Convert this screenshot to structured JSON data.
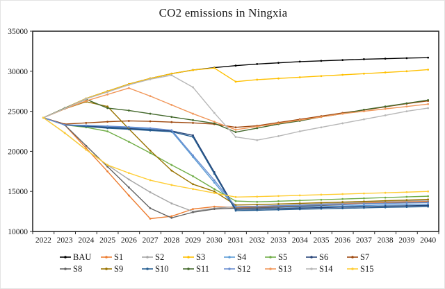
{
  "title": "CO2 emissions in Ningxia",
  "chart_data": {
    "type": "line",
    "title": "CO2 emissions in Ningxia",
    "xlabel": "",
    "ylabel": "",
    "x": [
      2022,
      2023,
      2024,
      2025,
      2026,
      2027,
      2028,
      2029,
      2030,
      2031,
      2032,
      2033,
      2034,
      2035,
      2036,
      2037,
      2038,
      2039,
      2040
    ],
    "ylim": [
      10000,
      35000
    ],
    "yticks": [
      10000,
      15000,
      20000,
      25000,
      30000,
      35000
    ],
    "grid": false,
    "legend_position": "bottom",
    "series": [
      {
        "name": "BAU",
        "color": "#000000",
        "values": [
          24200,
          25400,
          26600,
          27500,
          28400,
          29100,
          29700,
          30150,
          30450,
          30700,
          30900,
          31050,
          31200,
          31300,
          31400,
          31500,
          31570,
          31640,
          31700
        ]
      },
      {
        "name": "S1",
        "color": "#ED7D31",
        "values": [
          24200,
          23300,
          20400,
          17500,
          14500,
          11600,
          11900,
          12800,
          13100,
          13000,
          13050,
          13150,
          13250,
          13350,
          13450,
          13550,
          13650,
          13700,
          13750
        ]
      },
      {
        "name": "S2",
        "color": "#A5A5A5",
        "values": [
          24200,
          22300,
          20200,
          18300,
          16500,
          14900,
          13500,
          12500,
          12900,
          13100,
          13150,
          13250,
          13350,
          13450,
          13550,
          13650,
          13750,
          13830,
          13900
        ]
      },
      {
        "name": "S3",
        "color": "#FFC000",
        "values": [
          24200,
          25400,
          26600,
          27500,
          28400,
          29100,
          29700,
          30150,
          30400,
          28700,
          28950,
          29100,
          29250,
          29400,
          29550,
          29700,
          29850,
          30000,
          30200
        ]
      },
      {
        "name": "S4",
        "color": "#5B9BD5",
        "values": [
          24200,
          23300,
          23200,
          23100,
          22950,
          22800,
          22500,
          19300,
          16100,
          12900,
          12950,
          13000,
          13060,
          13120,
          13180,
          13240,
          13300,
          13350,
          13400
        ]
      },
      {
        "name": "S5",
        "color": "#70AD47",
        "values": [
          24200,
          23300,
          23000,
          22500,
          21200,
          19800,
          18300,
          16900,
          15300,
          13800,
          13700,
          13780,
          13870,
          13960,
          14050,
          14140,
          14230,
          14320,
          14400
        ]
      },
      {
        "name": "S6",
        "color": "#264478",
        "values": [
          24200,
          23300,
          23150,
          23000,
          22850,
          22700,
          22550,
          22000,
          17400,
          12750,
          12800,
          12860,
          12920,
          12980,
          13040,
          13100,
          13160,
          13210,
          13250
        ]
      },
      {
        "name": "S7",
        "color": "#9E480E",
        "values": [
          24200,
          23400,
          23550,
          23700,
          23800,
          23750,
          23650,
          23550,
          23400,
          23000,
          23200,
          23600,
          24000,
          24400,
          24800,
          25150,
          25550,
          25950,
          26300
        ]
      },
      {
        "name": "S8",
        "color": "#636363",
        "values": [
          24200,
          23300,
          20700,
          18100,
          15500,
          12900,
          11700,
          12400,
          12800,
          12900,
          12950,
          13050,
          13150,
          13250,
          13350,
          13450,
          13530,
          13600,
          13650
        ]
      },
      {
        "name": "S9",
        "color": "#997300",
        "values": [
          24200,
          25300,
          26200,
          25600,
          22800,
          20100,
          17600,
          15900,
          15000,
          13300,
          13350,
          13430,
          13510,
          13590,
          13670,
          13750,
          13840,
          13920,
          14000
        ]
      },
      {
        "name": "S10",
        "color": "#255E91",
        "values": [
          24200,
          23300,
          23100,
          22900,
          22750,
          22600,
          22450,
          21800,
          17200,
          12600,
          12650,
          12710,
          12770,
          12830,
          12890,
          12950,
          13010,
          13060,
          13100
        ]
      },
      {
        "name": "S11",
        "color": "#43682B",
        "values": [
          24200,
          25400,
          26500,
          25400,
          25100,
          24700,
          24300,
          23900,
          23500,
          22400,
          22900,
          23400,
          23800,
          24300,
          24700,
          25200,
          25600,
          26000,
          26400
        ]
      },
      {
        "name": "S12",
        "color": "#698ED0",
        "values": [
          24200,
          23300,
          23250,
          23150,
          23050,
          22900,
          22650,
          19500,
          16400,
          13100,
          13150,
          13210,
          13270,
          13330,
          13390,
          13450,
          13500,
          13550,
          13600
        ]
      },
      {
        "name": "S13",
        "color": "#F1975A",
        "values": [
          24200,
          25300,
          26300,
          27100,
          27900,
          26900,
          25800,
          24700,
          23700,
          22700,
          23100,
          23500,
          23900,
          24300,
          24700,
          25000,
          25300,
          25600,
          25900
        ]
      },
      {
        "name": "S14",
        "color": "#B7B7B7",
        "values": [
          24200,
          25350,
          26550,
          27400,
          28300,
          29000,
          29500,
          28000,
          24800,
          21800,
          21400,
          21900,
          22500,
          23000,
          23500,
          24000,
          24500,
          25000,
          25400
        ]
      },
      {
        "name": "S15",
        "color": "#FFCD33",
        "values": [
          24200,
          22300,
          20200,
          18300,
          17300,
          16400,
          15800,
          15300,
          14800,
          14300,
          14350,
          14430,
          14510,
          14590,
          14670,
          14750,
          14830,
          14910,
          15000
        ]
      }
    ],
    "legend_rows": [
      [
        "BAU",
        "S1",
        "S2",
        "S3",
        "S4",
        "S5",
        "S6",
        "S7"
      ],
      [
        "S8",
        "S9",
        "S10",
        "S11",
        "S12",
        "S13",
        "S14",
        "S15"
      ]
    ]
  }
}
